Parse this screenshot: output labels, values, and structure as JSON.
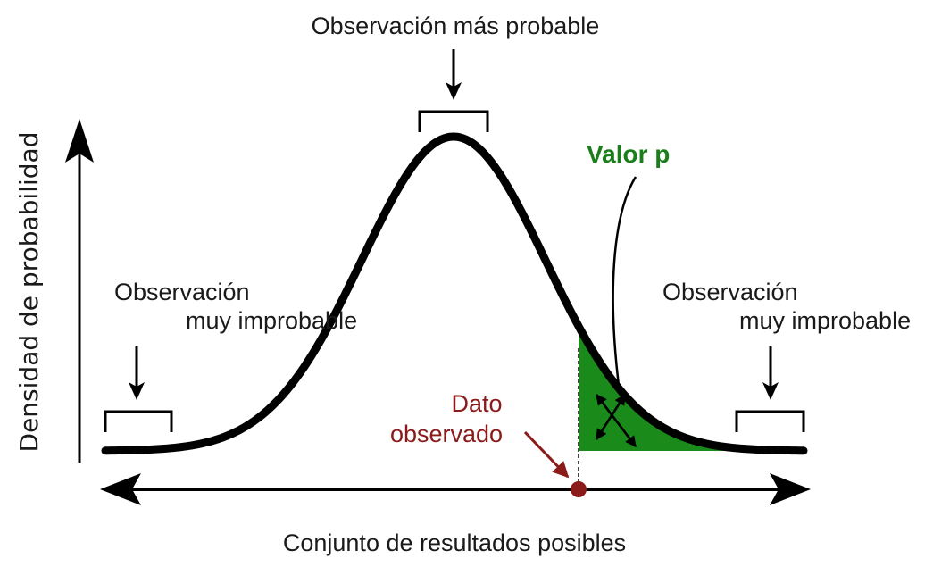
{
  "labels": {
    "most_probable": "Observación más probable",
    "left_unlikely_line1": "Observación",
    "left_unlikely_line2": "muy improbable",
    "right_unlikely_line1": "Observación",
    "right_unlikely_line2": "muy improbable",
    "p_value": "Valor p",
    "observed_line1": "Dato",
    "observed_line2": "observado",
    "x_axis": "Conjunto de resultados posibles",
    "y_axis": "Densidad de probabilidad"
  },
  "colors": {
    "curve": "#000000",
    "p_value_area": "#1a8a1a",
    "p_value_text": "#1a7f1a",
    "observed": "#8b1a1a"
  }
}
